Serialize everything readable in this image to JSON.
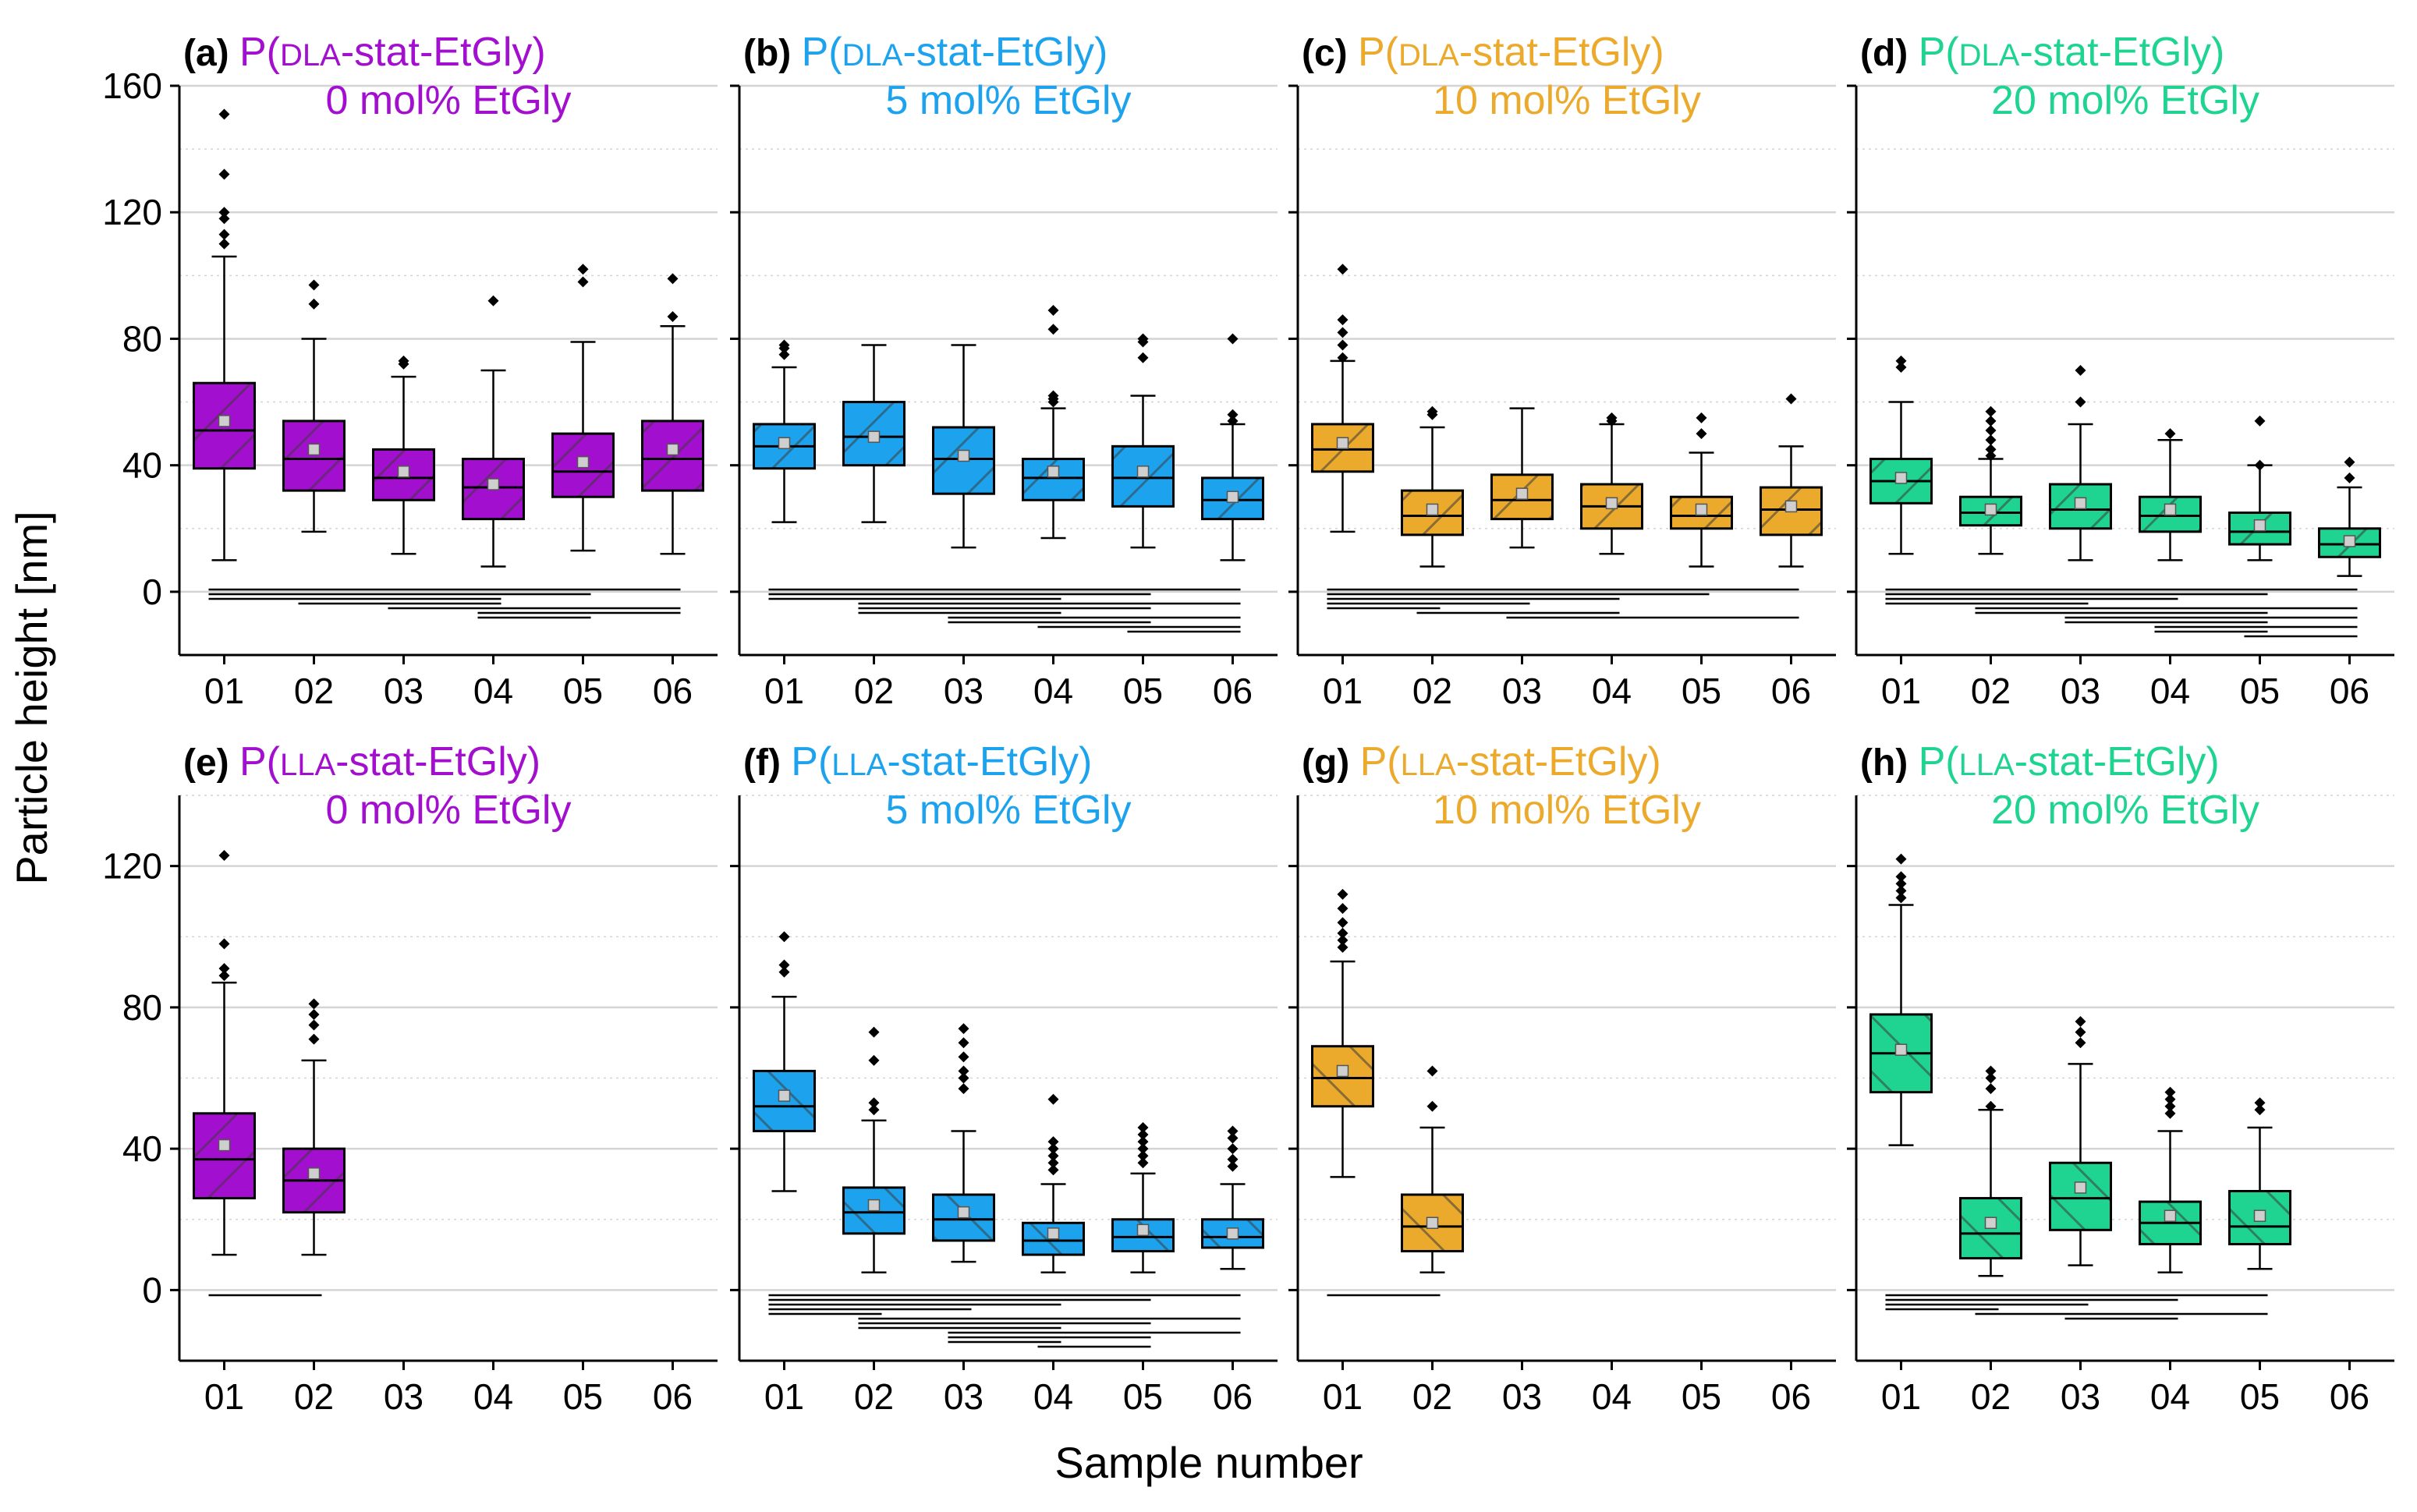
{
  "figure": {
    "ylabel": "Particle height [nm]",
    "xlabel": "Sample number"
  },
  "colors": {
    "purple": "#a30fce",
    "blue": "#1da3ee",
    "yellow": "#ecaa2d",
    "green": "#1ed490",
    "axis": "#000000",
    "grid": "#d4d4d4",
    "meanMarker": "#cfcfcf"
  },
  "chart_data": [
    {
      "type": "box",
      "panel": "(a)",
      "row": "top",
      "title_line1_pre": "P(",
      "title_line1_sc": "DLA",
      "title_line1_post": "-stat-EtGly)",
      "title_line2": "0 mol% EtGly",
      "color": "purple",
      "hatch": "forward",
      "ylim": [
        -20,
        160
      ],
      "yticks": [
        0,
        40,
        80,
        120,
        160
      ],
      "categories": [
        "01",
        "02",
        "03",
        "04",
        "05",
        "06"
      ],
      "boxes": [
        {
          "x": "01",
          "min": 10,
          "q1": 39,
          "median": 51,
          "q3": 66,
          "max": 106,
          "mean": 54,
          "outliers": [
            151,
            132,
            120,
            118,
            113,
            110
          ]
        },
        {
          "x": "02",
          "min": 19,
          "q1": 32,
          "median": 42,
          "q3": 54,
          "max": 80,
          "mean": 45,
          "outliers": [
            97,
            91
          ]
        },
        {
          "x": "03",
          "min": 12,
          "q1": 29,
          "median": 36,
          "q3": 45,
          "max": 68,
          "mean": 38,
          "outliers": [
            73,
            72
          ]
        },
        {
          "x": "04",
          "min": 8,
          "q1": 23,
          "median": 33,
          "q3": 42,
          "max": 70,
          "mean": 34,
          "outliers": [
            92
          ]
        },
        {
          "x": "05",
          "min": 13,
          "q1": 30,
          "median": 38,
          "q3": 50,
          "max": 79,
          "mean": 41,
          "outliers": [
            102,
            98
          ]
        },
        {
          "x": "06",
          "min": 12,
          "q1": 32,
          "median": 42,
          "q3": 54,
          "max": 84,
          "mean": 45,
          "outliers": [
            99,
            87
          ]
        }
      ],
      "significance": [
        [
          1,
          6
        ],
        [
          1,
          5
        ],
        [
          1,
          4
        ],
        [
          2,
          4
        ],
        [
          3,
          6
        ],
        [
          4,
          6
        ],
        [
          4,
          5
        ]
      ]
    },
    {
      "type": "box",
      "panel": "(b)",
      "row": "top",
      "title_line1_pre": "P(",
      "title_line1_sc": "DLA",
      "title_line1_post": "-stat-EtGly)",
      "title_line2": "5 mol% EtGly",
      "color": "blue",
      "hatch": "forward",
      "ylim": [
        -20,
        160
      ],
      "yticks": [
        0,
        40,
        80,
        120,
        160
      ],
      "categories": [
        "01",
        "02",
        "03",
        "04",
        "05",
        "06"
      ],
      "boxes": [
        {
          "x": "01",
          "min": 22,
          "q1": 39,
          "median": 46,
          "q3": 53,
          "max": 71,
          "mean": 47,
          "outliers": [
            78,
            77,
            75
          ]
        },
        {
          "x": "02",
          "min": 22,
          "q1": 40,
          "median": 49,
          "q3": 60,
          "max": 78,
          "mean": 49,
          "outliers": []
        },
        {
          "x": "03",
          "min": 14,
          "q1": 31,
          "median": 42,
          "q3": 52,
          "max": 78,
          "mean": 43,
          "outliers": []
        },
        {
          "x": "04",
          "min": 17,
          "q1": 29,
          "median": 36,
          "q3": 42,
          "max": 58,
          "mean": 38,
          "outliers": [
            89,
            83,
            62,
            61,
            60
          ]
        },
        {
          "x": "05",
          "min": 14,
          "q1": 27,
          "median": 36,
          "q3": 46,
          "max": 62,
          "mean": 38,
          "outliers": [
            80,
            79,
            74
          ]
        },
        {
          "x": "06",
          "min": 10,
          "q1": 23,
          "median": 29,
          "q3": 36,
          "max": 53,
          "mean": 30,
          "outliers": [
            80,
            56,
            54
          ]
        }
      ],
      "significance": [
        [
          1,
          6
        ],
        [
          1,
          5
        ],
        [
          1,
          4
        ],
        [
          2,
          6
        ],
        [
          2,
          5
        ],
        [
          2,
          4
        ],
        [
          3,
          6
        ],
        [
          3,
          5
        ],
        [
          4,
          6
        ],
        [
          5,
          6
        ]
      ]
    },
    {
      "type": "box",
      "panel": "(c)",
      "row": "top",
      "title_line1_pre": "P(",
      "title_line1_sc": "DLA",
      "title_line1_post": "-stat-EtGly)",
      "title_line2": "10 mol% EtGly",
      "color": "yellow",
      "hatch": "forward",
      "ylim": [
        -20,
        160
      ],
      "yticks": [
        0,
        40,
        80,
        120,
        160
      ],
      "categories": [
        "01",
        "02",
        "03",
        "04",
        "05",
        "06"
      ],
      "boxes": [
        {
          "x": "01",
          "min": 19,
          "q1": 38,
          "median": 45,
          "q3": 53,
          "max": 73,
          "mean": 47,
          "outliers": [
            102,
            86,
            82,
            78,
            74
          ]
        },
        {
          "x": "02",
          "min": 8,
          "q1": 18,
          "median": 24,
          "q3": 32,
          "max": 52,
          "mean": 26,
          "outliers": [
            57,
            56
          ]
        },
        {
          "x": "03",
          "min": 14,
          "q1": 23,
          "median": 29,
          "q3": 37,
          "max": 58,
          "mean": 31,
          "outliers": []
        },
        {
          "x": "04",
          "min": 12,
          "q1": 20,
          "median": 27,
          "q3": 34,
          "max": 53,
          "mean": 28,
          "outliers": [
            55,
            54
          ]
        },
        {
          "x": "05",
          "min": 8,
          "q1": 20,
          "median": 24,
          "q3": 30,
          "max": 44,
          "mean": 26,
          "outliers": [
            55,
            50
          ]
        },
        {
          "x": "06",
          "min": 8,
          "q1": 18,
          "median": 26,
          "q3": 33,
          "max": 46,
          "mean": 27,
          "outliers": [
            61
          ]
        }
      ],
      "significance": [
        [
          1,
          6
        ],
        [
          1,
          5
        ],
        [
          1,
          4
        ],
        [
          1,
          3
        ],
        [
          1,
          2
        ],
        [
          2,
          4
        ],
        [
          3,
          6
        ]
      ]
    },
    {
      "type": "box",
      "panel": "(d)",
      "row": "top",
      "title_line1_pre": "P(",
      "title_line1_sc": "DLA",
      "title_line1_post": "-stat-EtGly)",
      "title_line2": "20 mol% EtGly",
      "color": "green",
      "hatch": "forward",
      "ylim": [
        -20,
        160
      ],
      "yticks": [
        0,
        40,
        80,
        120,
        160
      ],
      "categories": [
        "01",
        "02",
        "03",
        "04",
        "05",
        "06"
      ],
      "boxes": [
        {
          "x": "01",
          "min": 12,
          "q1": 28,
          "median": 35,
          "q3": 42,
          "max": 60,
          "mean": 36,
          "outliers": [
            73,
            71
          ]
        },
        {
          "x": "02",
          "min": 12,
          "q1": 21,
          "median": 25,
          "q3": 30,
          "max": 42,
          "mean": 26,
          "outliers": [
            57,
            54,
            51,
            48,
            45,
            43
          ]
        },
        {
          "x": "03",
          "min": 10,
          "q1": 20,
          "median": 26,
          "q3": 34,
          "max": 53,
          "mean": 28,
          "outliers": [
            70,
            60
          ]
        },
        {
          "x": "04",
          "min": 10,
          "q1": 19,
          "median": 24,
          "q3": 30,
          "max": 48,
          "mean": 26,
          "outliers": [
            50
          ]
        },
        {
          "x": "05",
          "min": 10,
          "q1": 15,
          "median": 19,
          "q3": 25,
          "max": 40,
          "mean": 21,
          "outliers": [
            54,
            40
          ]
        },
        {
          "x": "06",
          "min": 5,
          "q1": 11,
          "median": 15,
          "q3": 20,
          "max": 33,
          "mean": 16,
          "outliers": [
            41,
            36
          ]
        }
      ],
      "significance": [
        [
          1,
          6
        ],
        [
          1,
          5
        ],
        [
          1,
          4
        ],
        [
          1,
          3
        ],
        [
          2,
          6
        ],
        [
          2,
          5
        ],
        [
          3,
          6
        ],
        [
          3,
          5
        ],
        [
          4,
          6
        ],
        [
          4,
          5
        ],
        [
          5,
          6
        ]
      ]
    },
    {
      "type": "box",
      "panel": "(e)",
      "row": "bottom",
      "title_line1_pre": "P(",
      "title_line1_sc": "LLA",
      "title_line1_post": "-stat-EtGly)",
      "title_line2": "0 mol% EtGly",
      "color": "purple",
      "hatch": "forward",
      "ylim": [
        -20,
        140
      ],
      "yticks": [
        0,
        40,
        80,
        120
      ],
      "categories": [
        "01",
        "02",
        "03",
        "04",
        "05",
        "06"
      ],
      "boxes": [
        {
          "x": "01",
          "min": 10,
          "q1": 26,
          "median": 37,
          "q3": 50,
          "max": 87,
          "mean": 41,
          "outliers": [
            123,
            98,
            91,
            89
          ]
        },
        {
          "x": "02",
          "min": 10,
          "q1": 22,
          "median": 31,
          "q3": 40,
          "max": 65,
          "mean": 33,
          "outliers": [
            81,
            78,
            75,
            71
          ]
        }
      ],
      "significance": [
        [
          1,
          2
        ]
      ]
    },
    {
      "type": "box",
      "panel": "(f)",
      "row": "bottom",
      "title_line1_pre": "P(",
      "title_line1_sc": "LLA",
      "title_line1_post": "-stat-EtGly)",
      "title_line2": "5 mol% EtGly",
      "color": "blue",
      "hatch": "backward",
      "ylim": [
        -20,
        140
      ],
      "yticks": [
        0,
        40,
        80,
        120
      ],
      "categories": [
        "01",
        "02",
        "03",
        "04",
        "05",
        "06"
      ],
      "boxes": [
        {
          "x": "01",
          "min": 28,
          "q1": 45,
          "median": 52,
          "q3": 62,
          "max": 83,
          "mean": 55,
          "outliers": [
            100,
            92,
            90
          ]
        },
        {
          "x": "02",
          "min": 5,
          "q1": 16,
          "median": 22,
          "q3": 29,
          "max": 48,
          "mean": 24,
          "outliers": [
            73,
            65,
            53,
            51
          ]
        },
        {
          "x": "03",
          "min": 8,
          "q1": 14,
          "median": 20,
          "q3": 27,
          "max": 45,
          "mean": 22,
          "outliers": [
            74,
            70,
            66,
            62,
            60,
            57
          ]
        },
        {
          "x": "04",
          "min": 5,
          "q1": 10,
          "median": 14,
          "q3": 19,
          "max": 30,
          "mean": 16,
          "outliers": [
            54,
            42,
            40,
            38,
            36,
            34
          ]
        },
        {
          "x": "05",
          "min": 5,
          "q1": 11,
          "median": 15,
          "q3": 20,
          "max": 33,
          "mean": 17,
          "outliers": [
            46,
            44,
            42,
            40,
            38,
            36
          ]
        },
        {
          "x": "06",
          "min": 6,
          "q1": 12,
          "median": 15,
          "q3": 20,
          "max": 30,
          "mean": 16,
          "outliers": [
            45,
            43,
            40,
            37,
            35
          ]
        }
      ],
      "significance": [
        [
          1,
          6
        ],
        [
          1,
          5
        ],
        [
          1,
          4
        ],
        [
          1,
          3
        ],
        [
          1,
          2
        ],
        [
          2,
          6
        ],
        [
          2,
          5
        ],
        [
          2,
          4
        ],
        [
          3,
          6
        ],
        [
          3,
          5
        ],
        [
          3,
          4
        ],
        [
          4,
          5
        ]
      ]
    },
    {
      "type": "box",
      "panel": "(g)",
      "row": "bottom",
      "title_line1_pre": "P(",
      "title_line1_sc": "LLA",
      "title_line1_post": "-stat-EtGly)",
      "title_line2": "10 mol% EtGly",
      "color": "yellow",
      "hatch": "backward",
      "ylim": [
        -20,
        140
      ],
      "yticks": [
        0,
        40,
        80,
        120
      ],
      "categories": [
        "01",
        "02",
        "03",
        "04",
        "05",
        "06"
      ],
      "boxes": [
        {
          "x": "01",
          "min": 32,
          "q1": 52,
          "median": 60,
          "q3": 69,
          "max": 93,
          "mean": 62,
          "outliers": [
            112,
            108,
            104,
            101,
            99,
            97
          ]
        },
        {
          "x": "02",
          "min": 5,
          "q1": 11,
          "median": 18,
          "q3": 27,
          "max": 46,
          "mean": 19,
          "outliers": [
            62,
            52
          ]
        }
      ],
      "significance": [
        [
          1,
          2
        ]
      ]
    },
    {
      "type": "box",
      "panel": "(h)",
      "row": "bottom",
      "title_line1_pre": "P(",
      "title_line1_sc": "LLA",
      "title_line1_post": "-stat-EtGly)",
      "title_line2": "20 mol% EtGly",
      "color": "green",
      "hatch": "backward",
      "ylim": [
        -20,
        140
      ],
      "yticks": [
        0,
        40,
        80,
        120
      ],
      "categories": [
        "01",
        "02",
        "03",
        "04",
        "05",
        "06"
      ],
      "boxes": [
        {
          "x": "01",
          "min": 41,
          "q1": 56,
          "median": 67,
          "q3": 78,
          "max": 109,
          "mean": 68,
          "outliers": [
            122,
            117,
            115,
            113,
            111
          ]
        },
        {
          "x": "02",
          "min": 4,
          "q1": 9,
          "median": 16,
          "q3": 26,
          "max": 51,
          "mean": 19,
          "outliers": [
            62,
            60,
            57,
            52
          ]
        },
        {
          "x": "03",
          "min": 7,
          "q1": 17,
          "median": 26,
          "q3": 36,
          "max": 64,
          "mean": 29,
          "outliers": [
            76,
            73,
            70
          ]
        },
        {
          "x": "04",
          "min": 5,
          "q1": 13,
          "median": 19,
          "q3": 25,
          "max": 45,
          "mean": 21,
          "outliers": [
            56,
            54,
            52,
            50
          ]
        },
        {
          "x": "05",
          "min": 6,
          "q1": 13,
          "median": 18,
          "q3": 28,
          "max": 46,
          "mean": 21,
          "outliers": [
            53,
            51
          ]
        }
      ],
      "significance": [
        [
          1,
          5
        ],
        [
          1,
          4
        ],
        [
          1,
          3
        ],
        [
          1,
          2
        ],
        [
          2,
          5
        ],
        [
          3,
          4
        ]
      ]
    }
  ]
}
